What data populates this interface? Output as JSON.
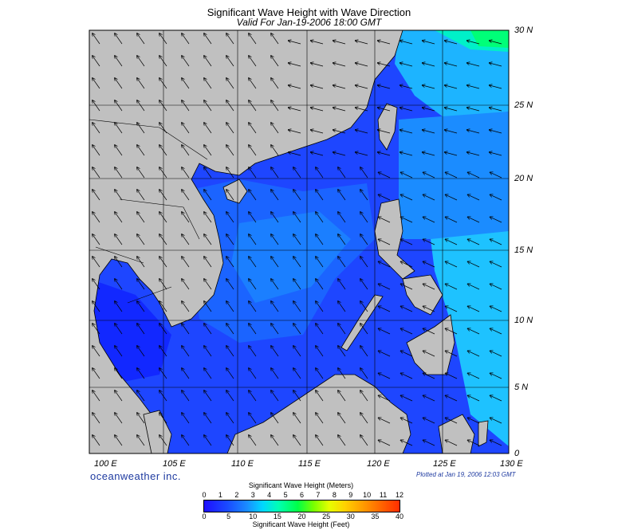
{
  "title": "Significant Wave Height with Wave Direction",
  "subtitle": "Valid For Jan-19-2006 18:00 GMT",
  "lat_labels": [
    "30 N",
    "25 N",
    "20 N",
    "15 N",
    "10 N",
    "5 N",
    "0"
  ],
  "lon_labels": [
    "100 E",
    "105 E",
    "110 E",
    "115 E",
    "120 E",
    "125 E",
    "130 E"
  ],
  "brand": "oceanweather inc.",
  "plotted": "Plotted at Jan 19, 2006 12:03 GMT",
  "colorbar": {
    "title_meters": "Significant Wave Height (Meters)",
    "title_feet": "Significant Wave Height (Feet)",
    "meters_ticks": [
      "0",
      "1",
      "2",
      "3",
      "4",
      "5",
      "6",
      "7",
      "8",
      "9",
      "10",
      "11",
      "12"
    ],
    "feet_ticks": [
      "0",
      "5",
      "10",
      "15",
      "20",
      "25",
      "30",
      "35",
      "40"
    ]
  },
  "colors": {
    "land": "#c0c0c0",
    "sea_low": "#1e3cff",
    "sea_mid": "#1e8cff",
    "sea_high": "#00e6ff",
    "max": "#00ff78"
  }
}
